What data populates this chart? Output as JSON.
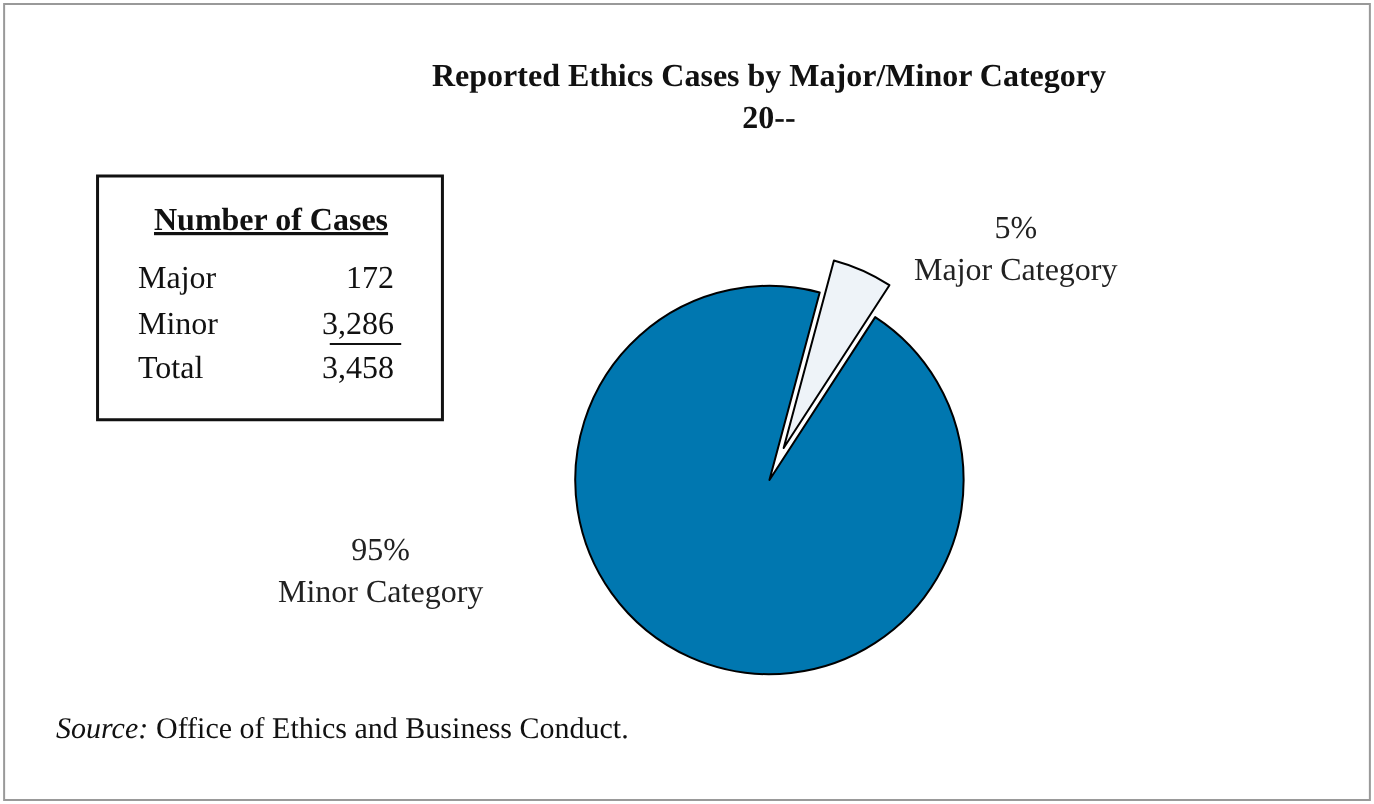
{
  "chart_data": {
    "type": "pie",
    "title": "Reported Ethics Cases by Major/Minor Category",
    "subtitle": "20--",
    "categories": [
      "Major Category",
      "Minor Category"
    ],
    "values": [
      5,
      95
    ],
    "value_labels": [
      "5%",
      "95%"
    ],
    "colors": [
      "#eef3f8",
      "#0077b0"
    ],
    "annotations": [
      "Number of Cases",
      "Major",
      "172",
      "Minor",
      "3,286",
      "Total",
      "3,458",
      "Source:",
      "Office of Ethics and Business Conduct."
    ],
    "legend": false
  }
}
